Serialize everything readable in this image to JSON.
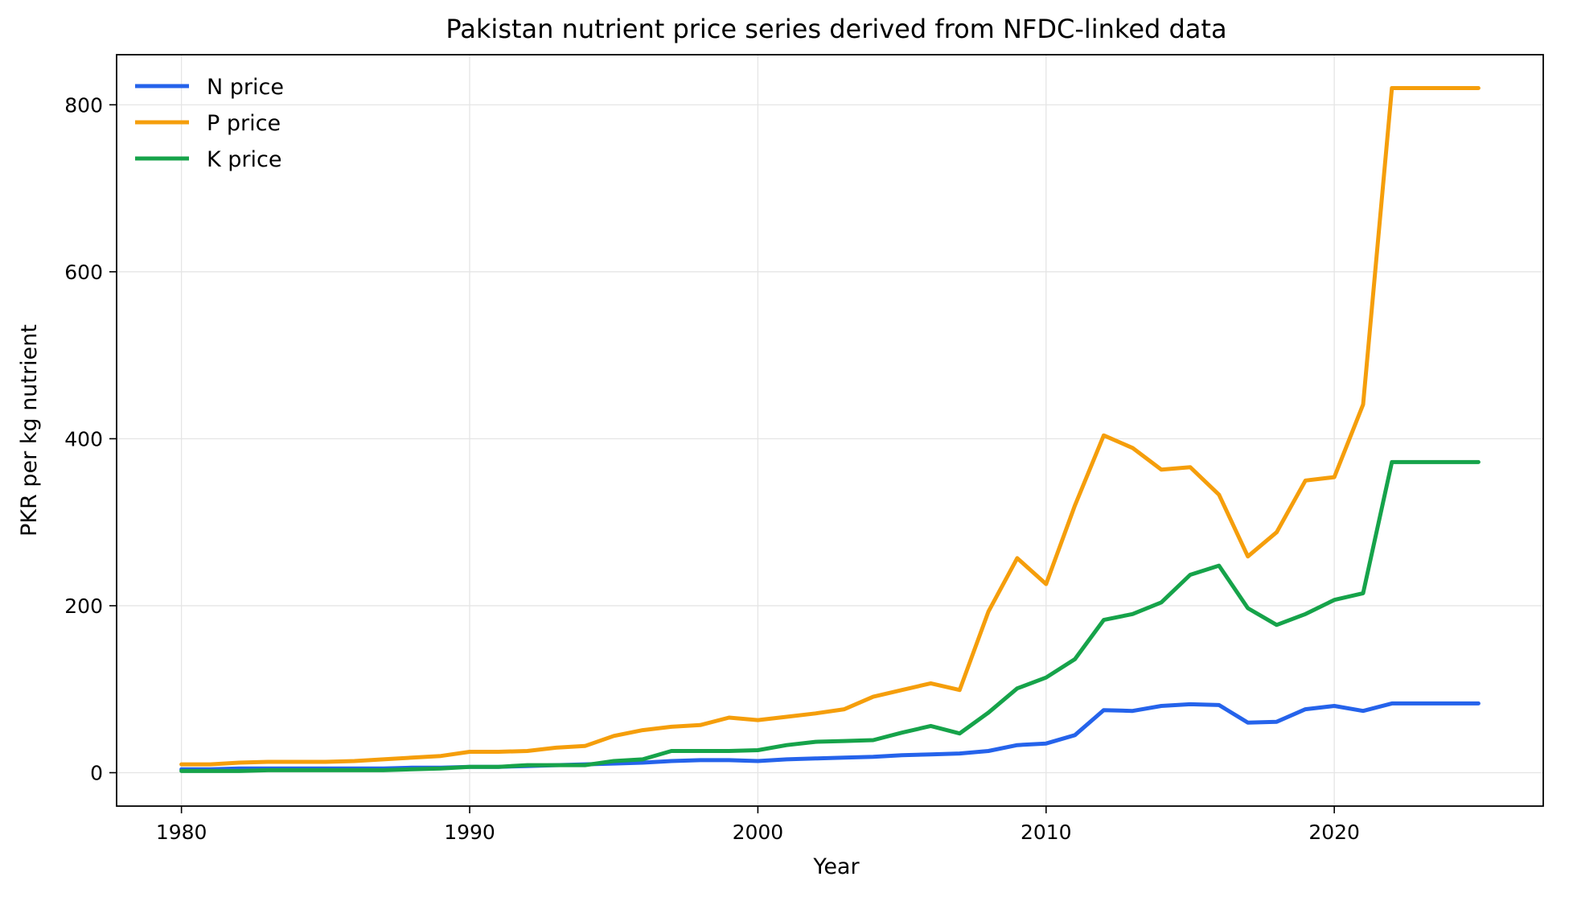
{
  "chart_data": {
    "type": "line",
    "title": "Pakistan nutrient price series derived from NFDC-linked data",
    "xlabel": "Year",
    "ylabel": "PKR per kg nutrient",
    "xlim": [
      1977.75,
      2027.25
    ],
    "ylim": [
      -40,
      860
    ],
    "xticks": [
      1980,
      1990,
      2000,
      2010,
      2020
    ],
    "yticks": [
      0,
      200,
      400,
      600,
      800
    ],
    "grid": true,
    "legend_position": "top-left",
    "x": [
      1980,
      1981,
      1982,
      1983,
      1984,
      1985,
      1986,
      1987,
      1988,
      1989,
      1990,
      1991,
      1992,
      1993,
      1994,
      1995,
      1996,
      1997,
      1998,
      1999,
      2000,
      2001,
      2002,
      2003,
      2004,
      2005,
      2006,
      2007,
      2008,
      2009,
      2010,
      2011,
      2012,
      2013,
      2014,
      2015,
      2016,
      2017,
      2018,
      2019,
      2020,
      2021,
      2022,
      2023,
      2024,
      2025
    ],
    "series": [
      {
        "name": "N price",
        "color": "#2563eb",
        "values": [
          4,
          4,
          5,
          5,
          5,
          5,
          5,
          5,
          6,
          6,
          7,
          7,
          8,
          9,
          10,
          11,
          12,
          14,
          15,
          15,
          14,
          16,
          17,
          18,
          19,
          21,
          22,
          23,
          26,
          33,
          35,
          45,
          75,
          74,
          80,
          82,
          81,
          60,
          61,
          76,
          80,
          74,
          83,
          83,
          83,
          83
        ]
      },
      {
        "name": "P price",
        "color": "#f59e0b",
        "values": [
          10,
          10,
          12,
          13,
          13,
          13,
          14,
          16,
          18,
          20,
          25,
          25,
          26,
          30,
          32,
          44,
          51,
          55,
          57,
          66,
          63,
          67,
          71,
          76,
          91,
          99,
          107,
          99,
          193,
          257,
          226,
          320,
          404,
          389,
          363,
          366,
          333,
          259,
          288,
          350,
          354,
          441,
          820,
          820,
          820,
          820
        ]
      },
      {
        "name": "K price",
        "color": "#16a34a",
        "values": [
          2,
          2,
          2,
          3,
          3,
          3,
          3,
          3,
          4,
          5,
          7,
          7,
          9,
          9,
          9,
          14,
          16,
          26,
          26,
          26,
          27,
          33,
          37,
          38,
          39,
          48,
          56,
          47,
          72,
          101,
          114,
          136,
          183,
          190,
          204,
          237,
          248,
          197,
          177,
          190,
          207,
          215,
          372,
          372,
          372,
          372
        ]
      }
    ]
  }
}
